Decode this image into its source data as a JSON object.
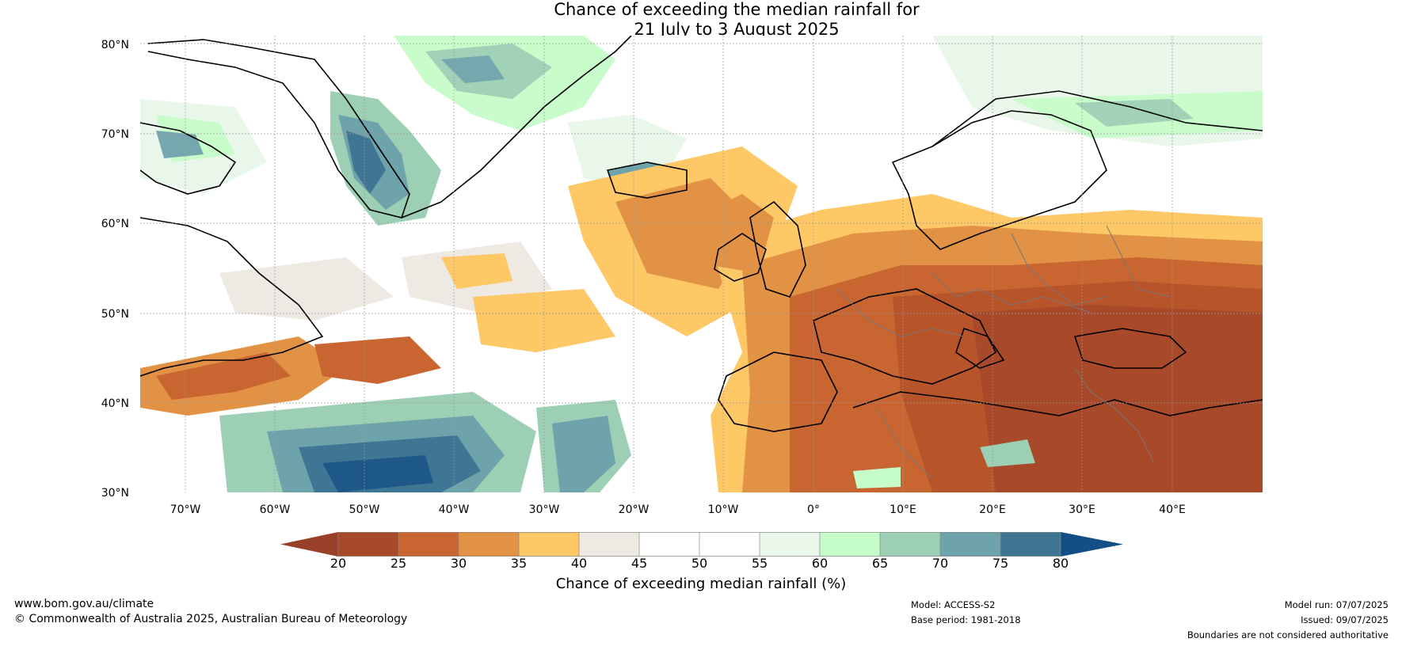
{
  "title": {
    "line1": "Chance of exceeding the median rainfall for",
    "line2": "21 July to 3 August 2025"
  },
  "map": {
    "type": "probability-outlook-map",
    "region": "North Atlantic and Europe",
    "lat_range": [
      30,
      80
    ],
    "lon_range": [
      -75,
      50
    ],
    "lat_labels": [
      "80°N",
      "70°N",
      "60°N",
      "50°N",
      "40°N",
      "30°N"
    ],
    "lon_labels": [
      "70°W",
      "60°W",
      "50°W",
      "40°W",
      "30°W",
      "20°W",
      "10°W",
      "0°",
      "10°E",
      "20°E",
      "30°E",
      "40°E"
    ],
    "gridlines": true,
    "ocean_background": "#ffffff",
    "regions": [
      {
        "name": "Southern and eastern Europe",
        "category": "20-25",
        "color": "#a8492a"
      },
      {
        "name": "Iberia, France, Central Europe",
        "category": "25-35",
        "color": "#c86531"
      },
      {
        "name": "British Isles and North Sea",
        "category": "35-40",
        "color": "#fec866"
      },
      {
        "name": "Mid North Atlantic",
        "category": "35-45",
        "color": "#ffd27a"
      },
      {
        "name": "Greenland east coast",
        "category": "65-80",
        "color": "#6ea3ab"
      },
      {
        "name": "Iceland",
        "category": "70-80",
        "color": "#3f7694"
      },
      {
        "name": "Barents Sea",
        "category": "60-70",
        "color": "#9ccfb4"
      },
      {
        "name": "Subtropical western Atlantic",
        "category": "70-80",
        "color": "#1d5889"
      }
    ]
  },
  "colorbar": {
    "label": "Chance of exceeding median rainfall (%)",
    "ticks": [
      "20",
      "25",
      "30",
      "35",
      "40",
      "45",
      "50",
      "55",
      "60",
      "65",
      "70",
      "75",
      "80"
    ],
    "colors": [
      "#a8492a",
      "#b8542a",
      "#c86531",
      "#e29245",
      "#fec866",
      "#efe9e4",
      "#ffffff",
      "#ffffff",
      "#e8f7ea",
      "#c6fcc9",
      "#9ccfb4",
      "#6ea3ab",
      "#3f7694",
      "#1d5889"
    ],
    "under_color": "#9a3f28",
    "over_color": "#124f87"
  },
  "footer": {
    "website": "www.bom.gov.au/climate",
    "copyright": "© Commonwealth of Australia 2025, Australian Bureau of Meteorology",
    "model": "Model: ACCESS-S2",
    "base_period": "Base period: 1981-2018",
    "model_run": "Model run: 07/07/2025",
    "issued": "Issued: 09/07/2025",
    "disclaimer": "Boundaries are not considered authoritative"
  }
}
